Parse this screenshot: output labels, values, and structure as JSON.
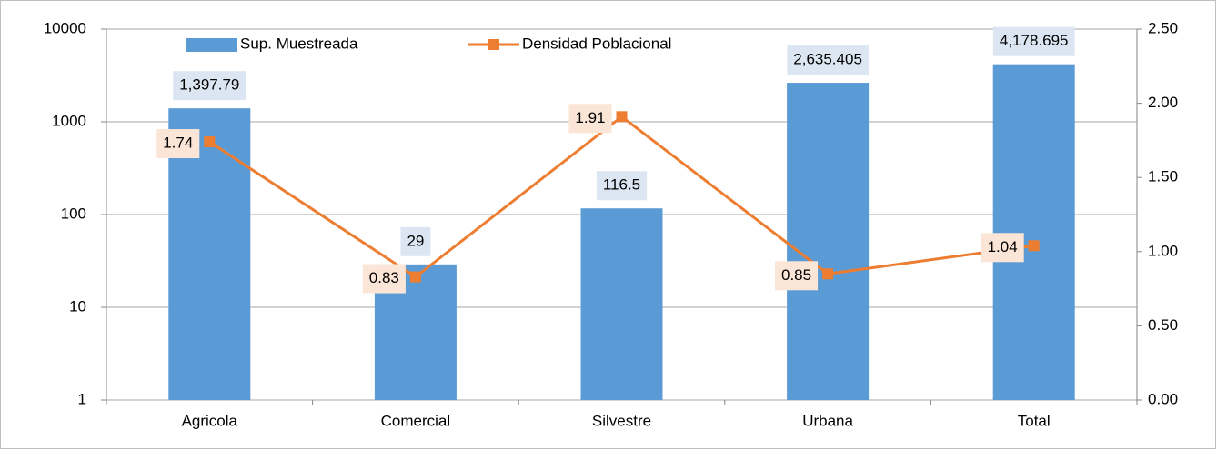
{
  "chart_data": {
    "type": "bar",
    "categories": [
      "Agricola",
      "Comercial",
      "Silvestre",
      "Urbana",
      "Total"
    ],
    "series": [
      {
        "name": "Sup. Muestreada",
        "type": "bar",
        "color": "#5b9bd5",
        "values": [
          1397.79,
          29,
          116.5,
          2635.405,
          4178.695
        ],
        "value_labels": [
          "1,397.79",
          "29",
          "116.5",
          "2,635.405",
          "4,178.695"
        ]
      },
      {
        "name": "Densidad Poblacional",
        "type": "line",
        "axis": "y2",
        "color": "#ed7d31",
        "values": [
          1.74,
          0.83,
          1.91,
          0.85,
          1.04
        ]
      }
    ],
    "ylim": [
      1,
      10000
    ],
    "yticks": [
      1,
      10,
      100,
      1000,
      10000
    ],
    "log_scale": true,
    "y2lim": [
      0,
      2.5
    ],
    "y2ticks": [
      {
        "value": 0,
        "label": "0.00"
      },
      {
        "value": 0.5,
        "label": "0.50"
      },
      {
        "value": 1,
        "label": "1.00"
      },
      {
        "value": 1.5,
        "label": "1.50"
      },
      {
        "value": 2,
        "label": "2.00"
      },
      {
        "value": 2.5,
        "label": "2.50"
      }
    ],
    "grid": true,
    "legend": "top"
  }
}
